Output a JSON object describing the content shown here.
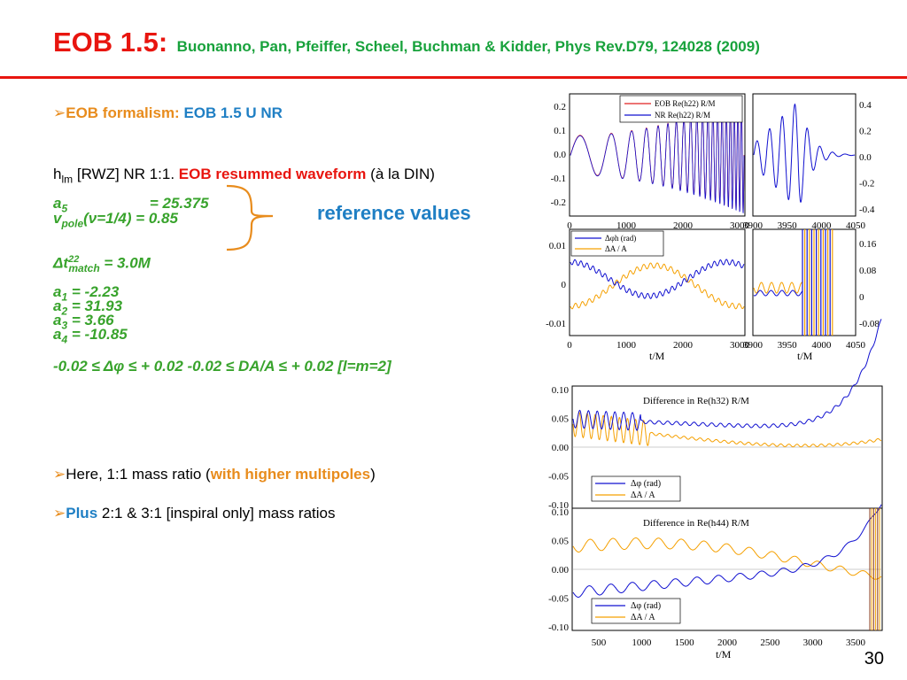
{
  "header": {
    "title_main": "EOB 1.5:",
    "title_sub": "Buonanno, Pan, Pfeiffer, Scheel, Buchman & Kidder, Phys Rev.D79, 124028 (2009)"
  },
  "left": {
    "bullet1_a": "EOB formalism:",
    "bullet1_b": "EOB 1.5 U NR",
    "hlm_h": "h",
    "hlm_sub": "lm",
    "hlm_rest": " [RWZ] NR 1:1. ",
    "hlm_eob": "EOB resummed waveform",
    "hlm_tail": " (à la DIN)",
    "a5_label": "a",
    "a5_sub": "5",
    "a5_value": "=  25.375",
    "vpole_label": "v",
    "vpole_sub": "pole",
    "vpole_value": "(ν=1/4) = 0.85",
    "ref_values": "reference values",
    "dt_label": "Δt",
    "dt_sup": "22",
    "dt_sub": "match",
    "dt_value": " = 3.0M",
    "a1_label": "a",
    "a1_sub": "1",
    "a1_value": " = -2.23",
    "a2_label": "a",
    "a2_sub": "2",
    "a2_value": " = 31.93",
    "a3_label": "a",
    "a3_sub": "3",
    "a3_value": " = 3.66",
    "a4_label": "a",
    "a4_sub": "4",
    "a4_value": " = -10.85",
    "tol_line": "-0.02 ≤ Δφ ≤ + 0.02    -0.02 ≤ DA/A ≤ + 0.02 [l=m=2]",
    "bullet2_a": "Here, 1:1 mass ratio (",
    "bullet2_b": "with higher multipoles",
    "bullet2_c": ")",
    "bullet3_a": "Plus",
    "bullet3_b": " 2:1 & 3:1 [inspiral only]  mass ratios"
  },
  "slide_number": "30",
  "colors": {
    "title_red": "#e8150f",
    "title_green": "#18a23c",
    "orange": "#e88c1d",
    "blue": "#1f7fc4",
    "green": "#38a32c",
    "curve_blue": "#1010d0",
    "curve_orange": "#f5a000",
    "curve_red": "#e02020"
  },
  "chart_data": [
    {
      "type": "line",
      "panel": "top-left waveform",
      "legend": [
        "EOB Re(h22) R/M",
        "NR Re(h22) R/M"
      ],
      "legend_placement": "top-right",
      "xlim": [
        0,
        3900
      ],
      "ylim": [
        -0.25,
        0.25
      ],
      "xticks": [
        "0",
        "1000",
        "2000",
        "3000"
      ],
      "yticks": [
        "0.2",
        "0.1",
        "0.0",
        "-0.1",
        "-0.2"
      ],
      "series": [
        {
          "name": "EOB Re(h22) R/M",
          "description": "oscillating",
          "amplitude_start": 0.08,
          "amplitude_end": 0.25
        },
        {
          "name": "NR Re(h22) R/M",
          "description": "oscillating",
          "amplitude_start": 0.08,
          "amplitude_end": 0.25
        }
      ]
    },
    {
      "type": "line",
      "panel": "top-right waveform zoom",
      "xlim": [
        3900,
        4080
      ],
      "ylim": [
        -0.45,
        0.45
      ],
      "xticks": [
        "3900",
        "3950",
        "4000",
        "4050"
      ],
      "yticks": [
        "0.4",
        "0.2",
        "0.0",
        "-0.2",
        "-0.4"
      ]
    },
    {
      "type": "line",
      "panel": "middle-left phase/amplitude difference",
      "legend": [
        "Δφh (rad)",
        "ΔA / A"
      ],
      "legend_placement": "top-left",
      "xlabel": "t/M",
      "xlim": [
        0,
        3900
      ],
      "ylim": [
        -0.013,
        0.013
      ],
      "xticks": [
        "0",
        "1000",
        "2000",
        "3000"
      ],
      "yticks": [
        "0.01",
        "0",
        "-0.01"
      ]
    },
    {
      "type": "line",
      "panel": "middle-right phase/amplitude difference zoom",
      "xlabel": "t/M",
      "xlim": [
        3900,
        4080
      ],
      "ylim": [
        -0.1,
        0.2
      ],
      "xticks": [
        "3900",
        "3950",
        "4000",
        "4050"
      ],
      "yticks": [
        "0.16",
        "0.08",
        "0",
        "-0.08"
      ]
    },
    {
      "type": "line",
      "panel": "Difference in Re(h32) R/M",
      "title": "Difference in Re(h32) R/M",
      "legend": [
        "Δφ (rad)",
        "ΔA / A"
      ],
      "legend_placement": "bottom-left",
      "xlim": [
        300,
        3900
      ],
      "ylim": [
        -0.1,
        0.1
      ],
      "yticks": [
        "0.10",
        "0.05",
        "0.00",
        "-0.05",
        "-0.10"
      ]
    },
    {
      "type": "line",
      "panel": "Difference in Re(h44) R/M",
      "title": "Difference in Re(h44) R/M",
      "legend": [
        "Δφ (rad)",
        "ΔA / A"
      ],
      "legend_placement": "bottom-left",
      "xlabel": "t/M",
      "xlim": [
        300,
        3900
      ],
      "ylim": [
        -0.1,
        0.1
      ],
      "xticks": [
        "500",
        "1000",
        "1500",
        "2000",
        "2500",
        "3000",
        "3500"
      ],
      "yticks": [
        "0.10",
        "0.05",
        "0.00",
        "-0.05",
        "-0.10"
      ]
    }
  ]
}
